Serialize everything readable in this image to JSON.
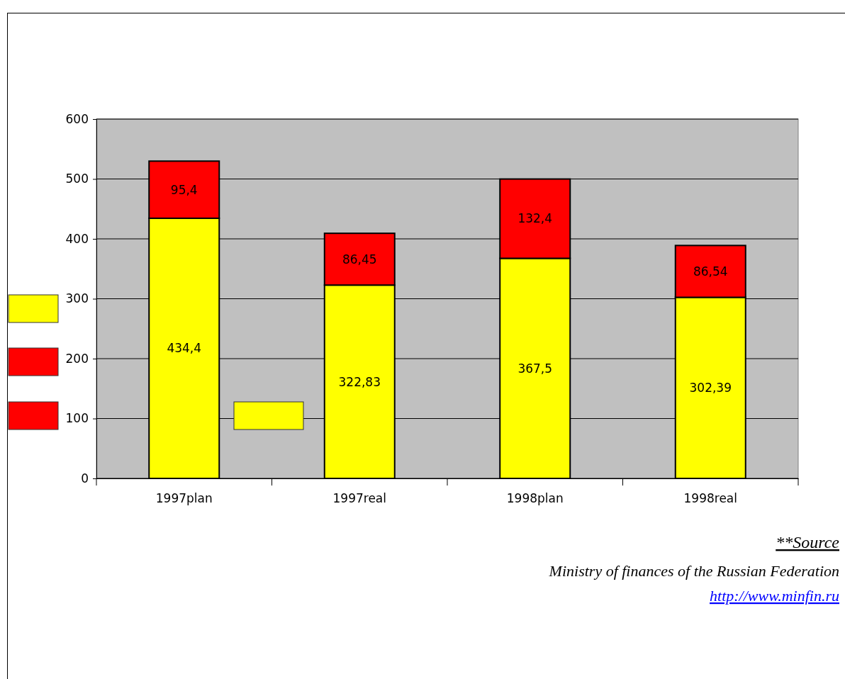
{
  "chart_data": {
    "type": "bar",
    "stacked": true,
    "categories": [
      "1997plan",
      "1997real",
      "1998plan",
      "1998real"
    ],
    "series": [
      {
        "color": "#ffff00",
        "values": [
          434.4,
          322.83,
          367.5,
          302.39
        ],
        "value_labels": [
          "434,4",
          "322,83",
          "367,5",
          "302,39"
        ]
      },
      {
        "color": "#ff0000",
        "values": [
          95.4,
          86.45,
          132.4,
          86.54
        ],
        "value_labels": [
          "95,4",
          "86,45",
          "132,4",
          "86,54"
        ]
      }
    ],
    "ylim": [
      0,
      600
    ],
    "yticks": [
      0,
      100,
      200,
      300,
      400,
      500,
      600
    ],
    "grid": "y",
    "annotations": [
      "**Source",
      "Ministry of finances of the Russian Federation",
      "http://www.minfin.ru"
    ]
  }
}
